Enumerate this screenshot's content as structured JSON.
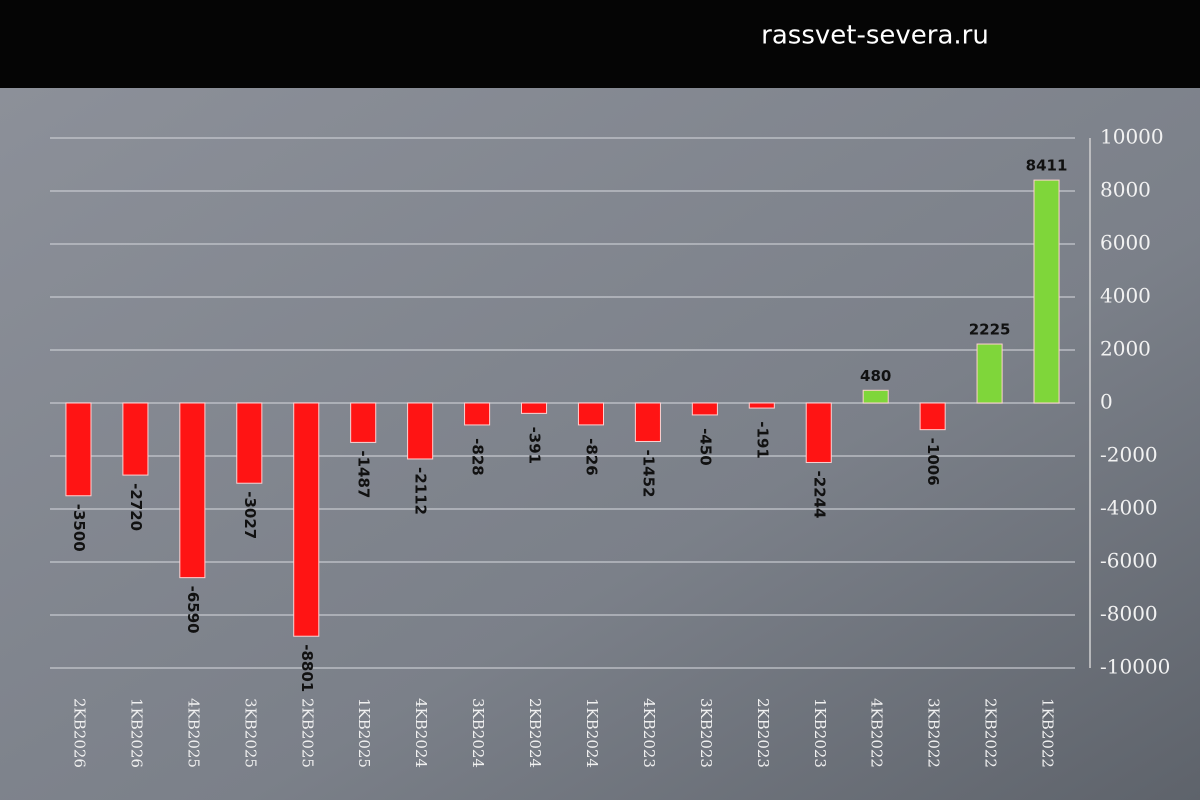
{
  "watermark": "rassvet-severa.ru",
  "chart_data": {
    "type": "bar",
    "categories": [
      "2KB2026",
      "1KB2026",
      "4KB2025",
      "3KB2025",
      "2KB2025",
      "1KB2025",
      "4KB2024",
      "3KB2024",
      "2KB2024",
      "1KB2024",
      "4KB2023",
      "3KB2023",
      "2KB2023",
      "1KB2023",
      "4KB2022",
      "3KB2022",
      "2KB2022",
      "1KB2022"
    ],
    "values": [
      -3500,
      -2720,
      -6590,
      -3027,
      -8801,
      -1487,
      -2112,
      -828,
      -391,
      -826,
      -1452,
      -450,
      -191,
      -2244,
      480,
      -1006,
      2225,
      8411
    ],
    "positive_color": "#7fd63a",
    "negative_color": "#ff1414",
    "ylim": [
      -10000,
      10000
    ],
    "yticks": [
      -10000,
      -8000,
      -6000,
      -4000,
      -2000,
      0,
      2000,
      4000,
      6000,
      8000,
      10000
    ],
    "grid": true,
    "y_axis_side": "right"
  }
}
